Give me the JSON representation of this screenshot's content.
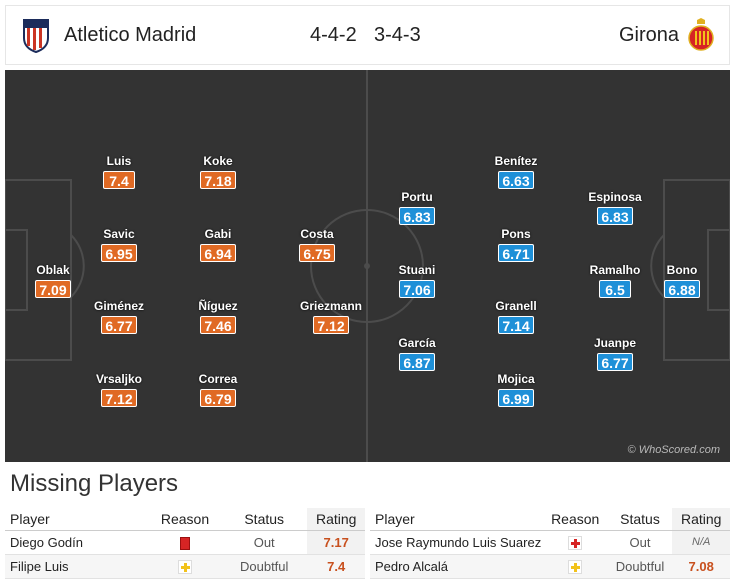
{
  "header": {
    "home_team": "Atletico Madrid",
    "home_formation": "4-4-2",
    "away_formation": "3-4-3",
    "away_team": "Girona"
  },
  "pitch": {
    "copyright": "© WhoScored.com",
    "home_players": [
      {
        "name": "Oblak",
        "rating": "7.09"
      },
      {
        "name": "Luis",
        "rating": "7.4"
      },
      {
        "name": "Savic",
        "rating": "6.95"
      },
      {
        "name": "Giménez",
        "rating": "6.77"
      },
      {
        "name": "Vrsaljko",
        "rating": "7.12"
      },
      {
        "name": "Koke",
        "rating": "7.18"
      },
      {
        "name": "Gabi",
        "rating": "6.94"
      },
      {
        "name": "Ñíguez",
        "rating": "7.46"
      },
      {
        "name": "Correa",
        "rating": "6.79"
      },
      {
        "name": "Costa",
        "rating": "6.75"
      },
      {
        "name": "Griezmann",
        "rating": "7.12"
      }
    ],
    "away_players": [
      {
        "name": "Portu",
        "rating": "6.83"
      },
      {
        "name": "Stuani",
        "rating": "7.06"
      },
      {
        "name": "García",
        "rating": "6.87"
      },
      {
        "name": "Benítez",
        "rating": "6.63"
      },
      {
        "name": "Pons",
        "rating": "6.71"
      },
      {
        "name": "Granell",
        "rating": "7.14"
      },
      {
        "name": "Mojica",
        "rating": "6.99"
      },
      {
        "name": "Espinosa",
        "rating": "6.83"
      },
      {
        "name": "Ramalho",
        "rating": "6.5"
      },
      {
        "name": "Juanpe",
        "rating": "6.77"
      },
      {
        "name": "Bono",
        "rating": "6.88"
      }
    ],
    "colors": {
      "home": "#e06a24",
      "away": "#1e90d8",
      "pitch": "#333333"
    }
  },
  "missing": {
    "title": "Missing Players",
    "headers": {
      "player": "Player",
      "reason": "Reason",
      "status": "Status",
      "rating": "Rating"
    },
    "home": [
      {
        "player": "Diego Godín",
        "reason_icon": "red-card-icon",
        "status": "Out",
        "rating": "7.17"
      },
      {
        "player": "Filipe Luis",
        "reason_icon": "yellow-cross-icon",
        "status": "Doubtful",
        "rating": "7.4"
      }
    ],
    "away": [
      {
        "player": "Jose Raymundo Luis Suarez",
        "reason_icon": "red-cross-icon",
        "status": "Out",
        "rating": "N/A"
      },
      {
        "player": "Pedro Alcalá",
        "reason_icon": "yellow-cross-icon",
        "status": "Doubtful",
        "rating": "7.08"
      }
    ]
  }
}
